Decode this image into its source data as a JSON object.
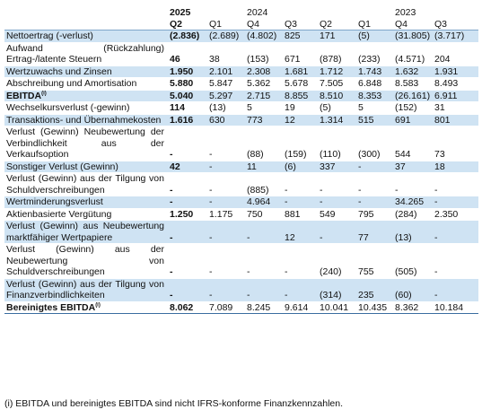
{
  "header": {
    "years": [
      "2025",
      "2024",
      "",
      "",
      "",
      "2023",
      ""
    ],
    "quarters": [
      "Q2",
      "Q1",
      "Q4",
      "Q3",
      "Q2",
      "Q1",
      "Q4",
      "Q3"
    ]
  },
  "rows": [
    {
      "label": "Nettoertrag (-verlust)",
      "blue": true,
      "values": [
        "(2.836)",
        "(2.689)",
        "(4.802)",
        "825",
        "171",
        "(5)",
        "(31.805)",
        "(3.717)"
      ]
    },
    {
      "label": "Aufwand (Rückzahlung) Ertrag-/latente Steuern",
      "blue": false,
      "values": [
        "46",
        "38",
        "(153)",
        "671",
        "(878)",
        "(233)",
        "(4.571)",
        "204"
      ]
    },
    {
      "label": "Wertzuwachs und Zinsen",
      "blue": true,
      "values": [
        "1.950",
        "2.101",
        "2.308",
        "1.681",
        "1.712",
        "1.743",
        "1.632",
        "1.931"
      ]
    },
    {
      "label": "Abschreibung und Amortisation",
      "blue": false,
      "values": [
        "5.880",
        "5.847",
        "5.362",
        "5.678",
        "7.505",
        "6.848",
        "8.583",
        "8.493"
      ]
    },
    {
      "label": "EBITDA",
      "sup": "(i)",
      "bold": true,
      "blue": true,
      "values": [
        "5.040",
        "5.297",
        "2.715",
        "8.855",
        "8.510",
        "8.353",
        "(26.161)",
        "6.911"
      ]
    },
    {
      "label": "Wechselkursverlust (-gewinn)",
      "blue": false,
      "values": [
        "114",
        "(13)",
        "5",
        "19",
        "(5)",
        "5",
        "(152)",
        "31"
      ]
    },
    {
      "label": "Transaktions- und Übernahmekosten",
      "blue": true,
      "values": [
        "1.616",
        "630",
        "773",
        "12",
        "1.314",
        "515",
        "691",
        "801"
      ]
    },
    {
      "label": "Verlust (Gewinn) Neubewertung der Verbindlichkeit aus der Verkaufsoption",
      "blue": false,
      "values": [
        "-",
        "-",
        "(88)",
        "(159)",
        "(110)",
        "(300)",
        "544",
        "73"
      ]
    },
    {
      "label": "Sonstiger Verlust (Gewinn)",
      "blue": true,
      "values": [
        "42",
        "-",
        "11",
        "(6)",
        "337",
        "-",
        "37",
        "18"
      ]
    },
    {
      "label": "Verlust (Gewinn) aus der Tilgung von Schuldverschreibungen",
      "blue": false,
      "values": [
        "-",
        "-",
        "(885)",
        "-",
        "-",
        "-",
        "-",
        "-"
      ]
    },
    {
      "label": "Wertminderungsverlust",
      "blue": true,
      "values": [
        "-",
        "-",
        "4.964",
        "-",
        "-",
        "-",
        "34.265",
        "-"
      ]
    },
    {
      "label": "Aktienbasierte Vergütung",
      "blue": false,
      "values": [
        "1.250",
        "1.175",
        "750",
        "881",
        "549",
        "795",
        "(284)",
        "2.350"
      ]
    },
    {
      "label": "Verlust (Gewinn) aus Neubewertung marktfähiger Wertpapiere",
      "blue": true,
      "values": [
        "-",
        "-",
        "-",
        "12",
        "-",
        "77",
        "(13)",
        "-"
      ]
    },
    {
      "label": "Verlust (Gewinn) aus der Neubewertung von Schuldverschreibungen",
      "blue": false,
      "values": [
        "-",
        "-",
        "-",
        "-",
        "(240)",
        "755",
        "(505)",
        "-"
      ]
    },
    {
      "label": "Verlust (Gewinn) aus der Tilgung von Finanzverbindlichkeiten",
      "blue": true,
      "values": [
        "-",
        "-",
        "-",
        "-",
        "(314)",
        "235",
        "(60)",
        "-"
      ]
    },
    {
      "label": "Bereinigtes EBITDA",
      "sup": "(i)",
      "bold": true,
      "blue": false,
      "values": [
        "8.062",
        "7.089",
        "8.245",
        "9.614",
        "10.041",
        "10.435",
        "8.362",
        "10.184"
      ]
    }
  ],
  "footnote": "(i) EBITDA und bereinigtes EBITDA sind nicht IFRS-konforme Finanzkennzahlen."
}
